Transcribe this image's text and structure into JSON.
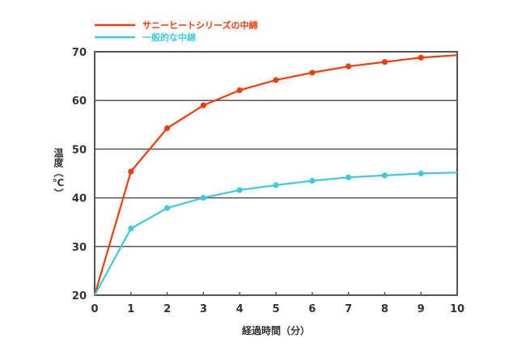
{
  "chart_data": {
    "type": "line",
    "xlabel": "経過時間（分）",
    "ylabel": "温度（℃）",
    "xlim": [
      0,
      10
    ],
    "ylim": [
      20,
      70
    ],
    "x_ticks": [
      "0",
      "1",
      "2",
      "3",
      "4",
      "5",
      "6",
      "7",
      "8",
      "9",
      "10"
    ],
    "y_ticks": [
      "20",
      "30",
      "40",
      "50",
      "60",
      "70"
    ],
    "grid": "horizontal",
    "legend_position": "top-left",
    "x": [
      0,
      1,
      2,
      3,
      4,
      5,
      6,
      7,
      8,
      9,
      10
    ],
    "series": [
      {
        "name": "サニーヒートシリーズの中綿",
        "color": "#f23c0a",
        "values": [
          20,
          45.4,
          54.3,
          59.0,
          62.1,
          64.2,
          65.7,
          67.0,
          67.9,
          68.8,
          69.3
        ],
        "markers": [
          1,
          2,
          3,
          4,
          5,
          6,
          7,
          8,
          9
        ]
      },
      {
        "name": "一般的な中綿",
        "color": "#3ec9dc",
        "values": [
          20,
          33.7,
          37.9,
          40.0,
          41.6,
          42.6,
          43.5,
          44.2,
          44.6,
          45.0,
          45.2
        ],
        "markers": [
          1,
          2,
          3,
          4,
          5,
          6,
          7,
          8,
          9
        ]
      }
    ]
  }
}
